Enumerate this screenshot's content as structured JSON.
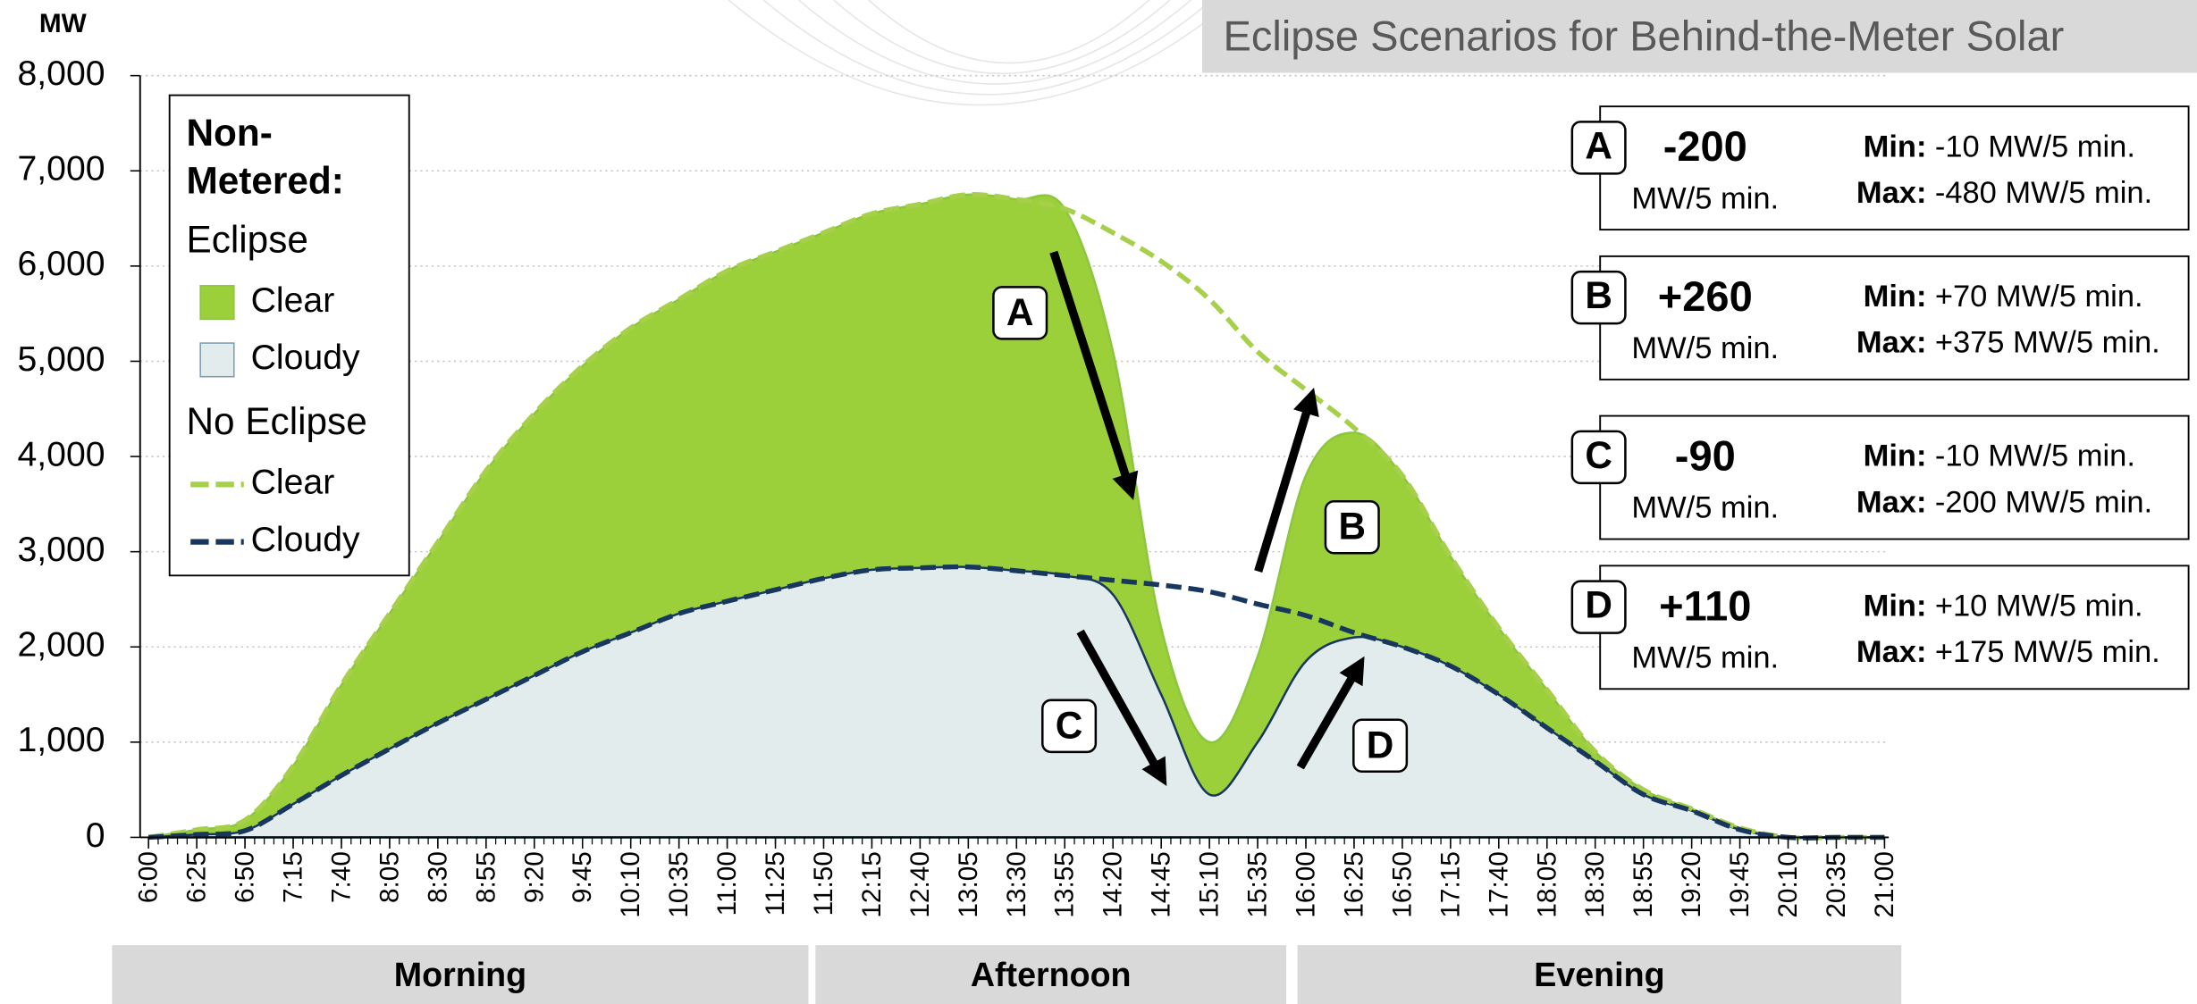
{
  "chart_data": {
    "type": "area",
    "title": "Eclipse Scenarios for Behind-the-Meter Solar",
    "y_label": "MW",
    "categories": [
      "6:00",
      "6:25",
      "6:50",
      "7:15",
      "7:40",
      "8:05",
      "8:30",
      "8:55",
      "9:20",
      "9:45",
      "10:10",
      "10:35",
      "11:00",
      "11:25",
      "11:50",
      "12:15",
      "12:40",
      "13:05",
      "13:30",
      "13:55",
      "14:20",
      "14:45",
      "15:10",
      "15:35",
      "16:00",
      "16:25",
      "16:50",
      "17:15",
      "17:40",
      "18:05",
      "18:30",
      "18:55",
      "19:20",
      "19:45",
      "20:10",
      "20:35",
      "21:00"
    ],
    "ylim": [
      0,
      8000
    ],
    "yticks": [
      0,
      {
        "value": 1000,
        "label": "1,000"
      },
      {
        "value": 2000,
        "label": "2,000"
      },
      {
        "value": 3000,
        "label": "3,000"
      },
      {
        "value": 4000,
        "label": "4,000"
      },
      {
        "value": 5000,
        "label": "5,000"
      },
      {
        "value": 6000,
        "label": "6,000"
      },
      {
        "value": 7000,
        "label": "7,000"
      },
      {
        "value": 8000,
        "label": "8,000"
      }
    ],
    "grid": true,
    "legend": {
      "title": "Non-Metered:",
      "groups": [
        "Eclipse",
        "No Eclipse"
      ]
    },
    "series": [
      {
        "name": "Clear",
        "style": "area",
        "color": "#9bd03a",
        "stroke": "#8cc63f",
        "values": [
          0,
          80,
          180,
          750,
          1600,
          2350,
          3100,
          3850,
          4450,
          4950,
          5350,
          5650,
          5950,
          6150,
          6350,
          6550,
          6650,
          6750,
          6700,
          6600,
          5100,
          2200,
          1000,
          1900,
          3800,
          4250,
          3800,
          2950,
          2200,
          1550,
          900,
          500,
          300,
          100,
          0,
          0,
          0
        ]
      },
      {
        "name": "Cloudy",
        "style": "area",
        "color": "#e3eced",
        "stroke": "#17375e",
        "values": [
          0,
          30,
          70,
          350,
          650,
          930,
          1200,
          1450,
          1700,
          1950,
          2150,
          2350,
          2480,
          2600,
          2720,
          2810,
          2830,
          2840,
          2800,
          2750,
          2550,
          1500,
          450,
          1000,
          1850,
          2100,
          2000,
          1800,
          1500,
          1150,
          800,
          450,
          280,
          80,
          0,
          0,
          0
        ]
      },
      {
        "name": "Clear",
        "style": "dashed",
        "color": "#a6cf4a",
        "values": [
          0,
          80,
          180,
          750,
          1600,
          2350,
          3100,
          3850,
          4450,
          4950,
          5350,
          5650,
          5950,
          6150,
          6350,
          6550,
          6650,
          6750,
          6700,
          6600,
          6350,
          6050,
          5650,
          5100,
          4700,
          4300,
          3800,
          2950,
          2200,
          1550,
          900,
          500,
          300,
          100,
          0,
          0,
          0
        ]
      },
      {
        "name": "Cloudy",
        "style": "dashed",
        "color": "#17375e",
        "values": [
          0,
          30,
          70,
          350,
          650,
          930,
          1200,
          1450,
          1700,
          1950,
          2150,
          2350,
          2480,
          2600,
          2720,
          2810,
          2830,
          2840,
          2800,
          2750,
          2700,
          2650,
          2580,
          2450,
          2330,
          2150,
          2000,
          1800,
          1500,
          1150,
          800,
          450,
          280,
          80,
          0,
          0,
          0
        ]
      }
    ],
    "annotations": [
      "A",
      "B",
      "C",
      "D"
    ],
    "scenarios": [
      {
        "letter": "A",
        "rate": "-200",
        "unit": "MW/5 min.",
        "min_label": "Min:",
        "min": "-10 MW/5 min.",
        "max_label": "Max:",
        "max": "-480 MW/5 min."
      },
      {
        "letter": "B",
        "rate": "+260",
        "unit": "MW/5 min.",
        "min_label": "Min:",
        "min": "+70 MW/5 min.",
        "max_label": "Max:",
        "max": "+375 MW/5 min."
      },
      {
        "letter": "C",
        "rate": "-90",
        "unit": "MW/5 min.",
        "min_label": "Min:",
        "min": "-10 MW/5 min.",
        "max_label": "Max:",
        "max": "-200 MW/5 min."
      },
      {
        "letter": "D",
        "rate": "+110",
        "unit": "MW/5 min.",
        "min_label": "Min:",
        "min": "+10 MW/5 min.",
        "max_label": "Max:",
        "max": "+175 MW/5 min."
      }
    ],
    "periods": [
      "Morning",
      "Afternoon",
      "Evening"
    ]
  }
}
